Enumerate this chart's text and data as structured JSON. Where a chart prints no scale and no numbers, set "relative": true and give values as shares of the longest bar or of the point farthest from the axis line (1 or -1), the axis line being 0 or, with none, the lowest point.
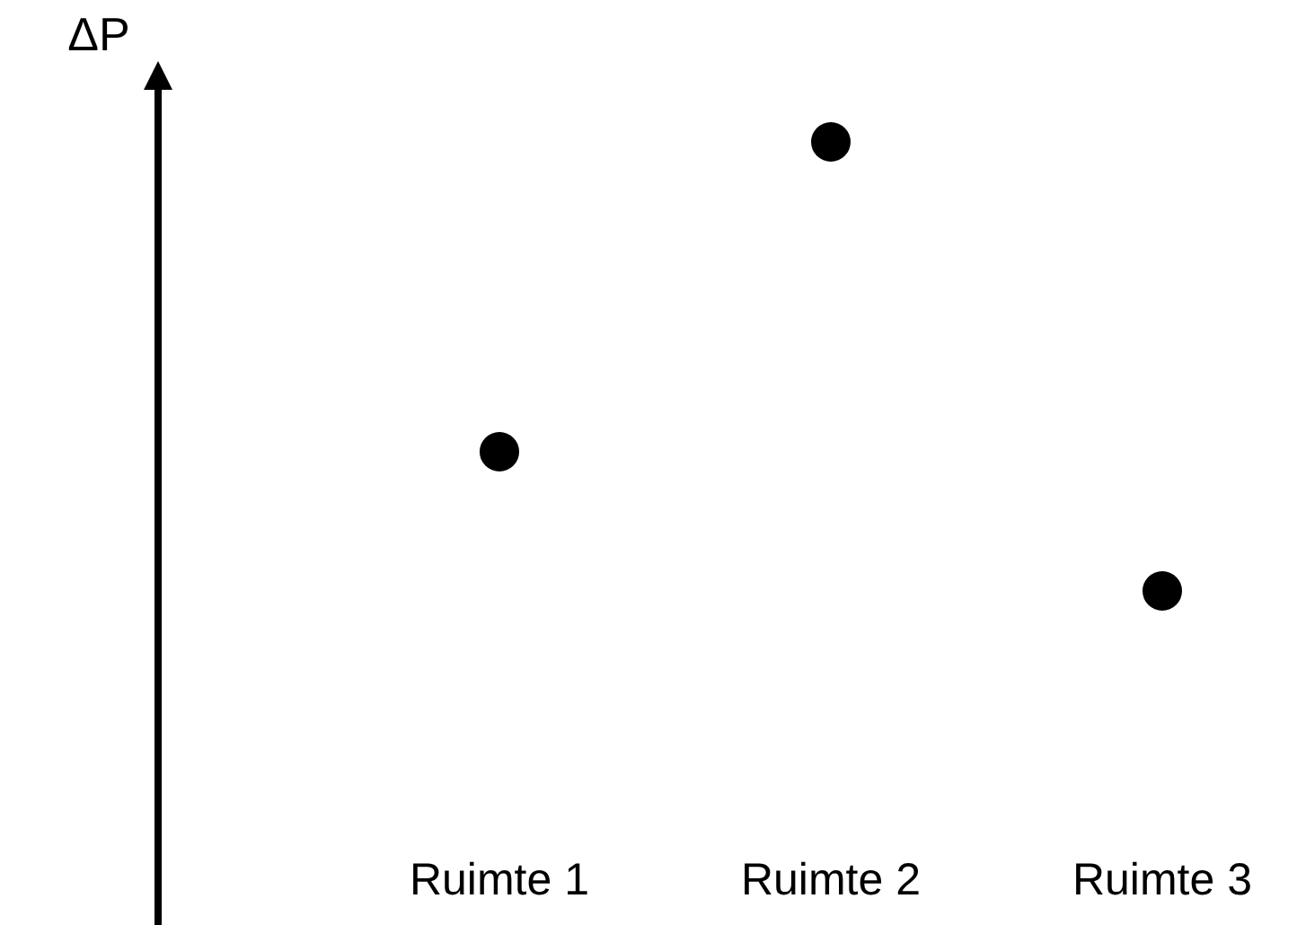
{
  "chart_data": {
    "type": "scatter",
    "relative": true,
    "ylabel": "ΔP",
    "categories": [
      "Ruimte 1",
      "Ruimte 2",
      "Ruimte 3"
    ],
    "series": [
      {
        "color": "#000000",
        "values": [
          0.31,
          1,
          0
        ]
      }
    ],
    "marker": "circle",
    "tick_labels": "x"
  }
}
